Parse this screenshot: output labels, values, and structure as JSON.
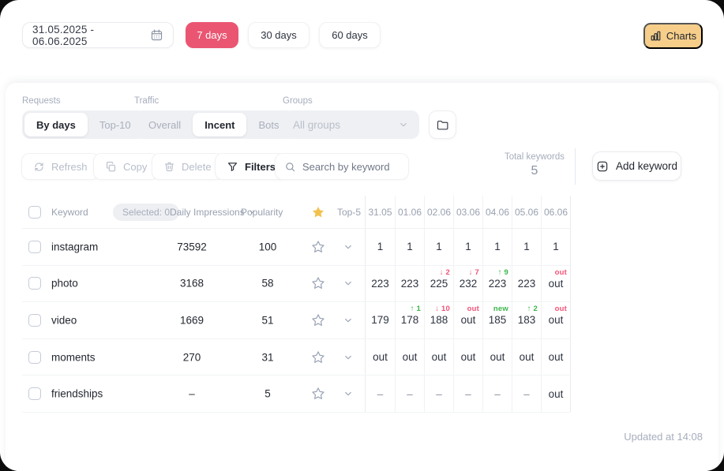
{
  "topbar": {
    "date_range": "31.05.2025 - 06.06.2025",
    "period_buttons": [
      {
        "label": "7 days",
        "active": true
      },
      {
        "label": "30 days",
        "active": false
      },
      {
        "label": "60 days",
        "active": false
      }
    ],
    "charts_button": "Charts"
  },
  "filters": {
    "requests": {
      "label": "Requests",
      "options": [
        {
          "label": "By days",
          "active": true
        },
        {
          "label": "Top-10",
          "active": false
        }
      ]
    },
    "traffic": {
      "label": "Traffic",
      "options": [
        {
          "label": "Overall",
          "active": false
        },
        {
          "label": "Incent",
          "active": true
        },
        {
          "label": "Bots",
          "active": false
        }
      ]
    },
    "groups": {
      "label": "Groups",
      "selected": "All groups"
    }
  },
  "toolbar": {
    "refresh_label": "Refresh",
    "copy_label": "Copy",
    "delete_label": "Delete",
    "filters_label": "Filters",
    "search_placeholder": "Search by keyword",
    "total_keywords_label": "Total keywords",
    "total_keywords_value": "5",
    "add_keyword_label": "Add keyword"
  },
  "table": {
    "header": {
      "keyword": "Keyword",
      "selected_badge": "Selected: 0",
      "daily_impressions": "Daily Impressions",
      "popularity": "Popularity",
      "top5": "Top-5",
      "dates": [
        "31.05",
        "01.06",
        "02.06",
        "03.06",
        "04.06",
        "05.06",
        "06.06"
      ]
    },
    "rows": [
      {
        "keyword": "instagram",
        "daily_impressions": "73592",
        "popularity": "100",
        "cells": [
          {
            "value": "1"
          },
          {
            "value": "1"
          },
          {
            "value": "1"
          },
          {
            "value": "1"
          },
          {
            "value": "1"
          },
          {
            "value": "1"
          },
          {
            "value": "1"
          }
        ]
      },
      {
        "keyword": "photo",
        "daily_impressions": "3168",
        "popularity": "58",
        "cells": [
          {
            "value": "223"
          },
          {
            "value": "223"
          },
          {
            "value": "225",
            "indicator": "↓ 2",
            "trend": "down"
          },
          {
            "value": "232",
            "indicator": "↓ 7",
            "trend": "down"
          },
          {
            "value": "223",
            "indicator": "↑ 9",
            "trend": "up"
          },
          {
            "value": "223"
          },
          {
            "value": "out",
            "indicator": "out",
            "trend": "out"
          }
        ]
      },
      {
        "keyword": "video",
        "daily_impressions": "1669",
        "popularity": "51",
        "cells": [
          {
            "value": "179"
          },
          {
            "value": "178",
            "indicator": "↑ 1",
            "trend": "up"
          },
          {
            "value": "188",
            "indicator": "↓ 10",
            "trend": "down"
          },
          {
            "value": "out",
            "indicator": "out",
            "trend": "out"
          },
          {
            "value": "185",
            "indicator": "new",
            "trend": "new"
          },
          {
            "value": "183",
            "indicator": "↑ 2",
            "trend": "up"
          },
          {
            "value": "out",
            "indicator": "out",
            "trend": "out"
          }
        ]
      },
      {
        "keyword": "moments",
        "daily_impressions": "270",
        "popularity": "31",
        "cells": [
          {
            "value": "out"
          },
          {
            "value": "out"
          },
          {
            "value": "out"
          },
          {
            "value": "out"
          },
          {
            "value": "out"
          },
          {
            "value": "out"
          },
          {
            "value": "out"
          }
        ]
      },
      {
        "keyword": "friendships",
        "daily_impressions": "–",
        "popularity": "5",
        "cells": [
          {
            "value": "–"
          },
          {
            "value": "–"
          },
          {
            "value": "–"
          },
          {
            "value": "–"
          },
          {
            "value": "–"
          },
          {
            "value": "–"
          },
          {
            "value": "out"
          }
        ]
      }
    ]
  },
  "footer": {
    "updated": "Updated at 14:08"
  },
  "colors": {
    "accent_pink": "#EA5672",
    "charts_yellow": "#F6CE8A",
    "star_gold": "#F2C14E",
    "positive_green": "#3CB54A",
    "negative_red": "#F25277"
  }
}
